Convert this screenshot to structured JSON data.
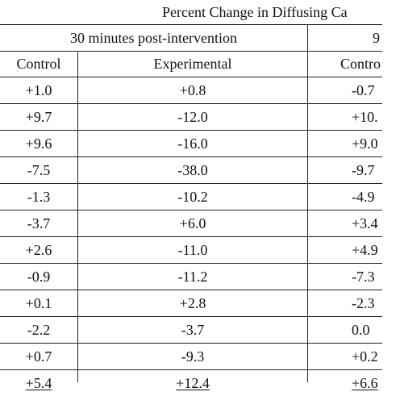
{
  "table": {
    "title": "Percent Change in Diffusing Ca",
    "group_headers": [
      "30 minutes post-intervention",
      "9"
    ],
    "column_headers": [
      "Control",
      "Experimental",
      "Contro"
    ],
    "rows": [
      [
        "+1.0",
        "+0.8",
        "-0.7"
      ],
      [
        "+9.7",
        "-12.0",
        "+10."
      ],
      [
        "+9.6",
        "-16.0",
        "+9.0"
      ],
      [
        "-7.5",
        "-38.0",
        "-9.7"
      ],
      [
        "-1.3",
        "-10.2",
        "-4.9"
      ],
      [
        "-3.7",
        "+6.0",
        "+3.4"
      ],
      [
        "+2.6",
        "-11.0",
        "+4.9"
      ],
      [
        "-0.9",
        "-11.2",
        "-7.3"
      ],
      [
        "+0.1",
        "+2.8",
        "-2.3"
      ],
      [
        "-2.2",
        "-3.7",
        "0.0"
      ],
      [
        "+0.7",
        "-9.3",
        "+0.2"
      ],
      [
        "+5.4",
        "+12.4",
        "+6.6"
      ]
    ]
  }
}
